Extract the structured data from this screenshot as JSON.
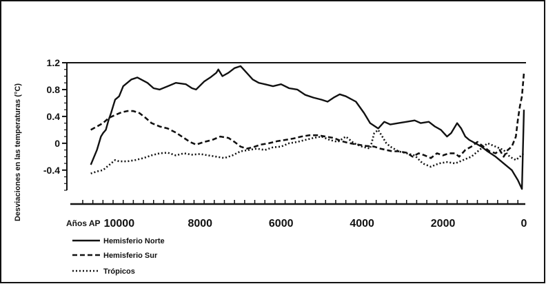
{
  "chart_data": {
    "type": "line",
    "title": "",
    "xlabel": "Años AP",
    "ylabel": "Desviaciones en las temperaturas (°C)",
    "xlim": [
      10900,
      0
    ],
    "ylim": [
      -0.7,
      1.2
    ],
    "y_ticks": [
      -0.4,
      0,
      0.4,
      0.8,
      1.2
    ],
    "y_tick_labels": [
      "-0.4",
      "0",
      "0.4",
      "0.8",
      "1.2"
    ],
    "x_ticks": [
      10000,
      8000,
      6000,
      4000,
      2000,
      0
    ],
    "x_tick_labels": [
      "10000",
      "8000",
      "6000",
      "4000",
      "2000",
      "0"
    ],
    "legend_position": "bottom-left",
    "series": [
      {
        "name": "Hemisferio Norte",
        "style": "solid",
        "color": "#111111",
        "x": [
          10700,
          10550,
          10450,
          10400,
          10330,
          10260,
          10200,
          10150,
          10100,
          10000,
          9900,
          9800,
          9700,
          9550,
          9300,
          9150,
          9000,
          8800,
          8600,
          8350,
          8200,
          8100,
          7900,
          7750,
          7600,
          7550,
          7450,
          7300,
          7150,
          7000,
          6850,
          6700,
          6550,
          6400,
          6200,
          6000,
          5800,
          5600,
          5400,
          5200,
          5000,
          4850,
          4700,
          4550,
          4400,
          4150,
          3950,
          3800,
          3600,
          3450,
          3300,
          3100,
          2900,
          2700,
          2550,
          2350,
          2200,
          2050,
          1900,
          1800,
          1650,
          1550,
          1450,
          1350,
          1200,
          1050,
          900,
          700,
          500,
          300,
          150,
          50,
          0
        ],
        "y": [
          -0.32,
          -0.1,
          0.1,
          0.15,
          0.2,
          0.35,
          0.45,
          0.55,
          0.65,
          0.7,
          0.85,
          0.9,
          0.95,
          0.98,
          0.9,
          0.82,
          0.8,
          0.85,
          0.9,
          0.88,
          0.82,
          0.8,
          0.92,
          0.98,
          1.05,
          1.1,
          1.0,
          1.05,
          1.12,
          1.15,
          1.05,
          0.95,
          0.9,
          0.88,
          0.85,
          0.88,
          0.82,
          0.8,
          0.72,
          0.68,
          0.65,
          0.62,
          0.68,
          0.73,
          0.7,
          0.62,
          0.45,
          0.3,
          0.22,
          0.32,
          0.28,
          0.3,
          0.32,
          0.34,
          0.3,
          0.32,
          0.25,
          0.2,
          0.1,
          0.15,
          0.3,
          0.22,
          0.1,
          0.05,
          0.0,
          -0.05,
          -0.12,
          -0.2,
          -0.3,
          -0.4,
          -0.55,
          -0.68,
          0.5
        ]
      },
      {
        "name": "Hemisferio Sur",
        "style": "dashed",
        "color": "#111111",
        "x": [
          10700,
          10550,
          10400,
          10250,
          10100,
          9950,
          9800,
          9650,
          9500,
          9350,
          9200,
          9000,
          8800,
          8600,
          8400,
          8250,
          8100,
          7900,
          7700,
          7500,
          7300,
          7150,
          7000,
          6850,
          6700,
          6500,
          6300,
          6100,
          5900,
          5700,
          5500,
          5300,
          5100,
          4900,
          4700,
          4500,
          4300,
          4100,
          3900,
          3700,
          3550,
          3400,
          3250,
          3100,
          2900,
          2750,
          2600,
          2450,
          2300,
          2150,
          2000,
          1850,
          1700,
          1600,
          1450,
          1300,
          1150,
          1000,
          850,
          700,
          600,
          500,
          400,
          300,
          200,
          150,
          100,
          50,
          0
        ],
        "y": [
          0.2,
          0.25,
          0.3,
          0.38,
          0.42,
          0.46,
          0.48,
          0.48,
          0.45,
          0.38,
          0.3,
          0.25,
          0.22,
          0.16,
          0.08,
          0.02,
          -0.02,
          0.02,
          0.05,
          0.1,
          0.08,
          0.02,
          -0.05,
          -0.08,
          -0.06,
          -0.02,
          0.0,
          0.03,
          0.05,
          0.07,
          0.1,
          0.12,
          0.12,
          0.1,
          0.08,
          0.03,
          0.0,
          -0.02,
          -0.04,
          -0.05,
          -0.08,
          -0.1,
          -0.12,
          -0.12,
          -0.14,
          -0.2,
          -0.15,
          -0.18,
          -0.22,
          -0.15,
          -0.18,
          -0.15,
          -0.15,
          -0.2,
          -0.1,
          -0.05,
          0.02,
          -0.05,
          -0.12,
          -0.15,
          -0.1,
          -0.2,
          -0.1,
          -0.05,
          0.1,
          0.35,
          0.55,
          0.7,
          1.05
        ]
      },
      {
        "name": "Trópicos",
        "style": "dotted",
        "color": "#111111",
        "x": [
          10700,
          10550,
          10400,
          10300,
          10200,
          10100,
          10000,
          9800,
          9600,
          9400,
          9200,
          9000,
          8800,
          8600,
          8400,
          8200,
          8000,
          7800,
          7600,
          7400,
          7200,
          7000,
          6800,
          6600,
          6400,
          6200,
          6000,
          5800,
          5600,
          5400,
          5200,
          5000,
          4800,
          4600,
          4400,
          4200,
          4000,
          3800,
          3700,
          3600,
          3500,
          3400,
          3300,
          3100,
          2900,
          2700,
          2500,
          2300,
          2100,
          1900,
          1700,
          1500,
          1300,
          1100,
          900,
          700,
          500,
          350,
          200,
          100,
          0
        ],
        "y": [
          -0.45,
          -0.42,
          -0.4,
          -0.35,
          -0.3,
          -0.25,
          -0.27,
          -0.27,
          -0.25,
          -0.22,
          -0.18,
          -0.15,
          -0.14,
          -0.18,
          -0.15,
          -0.17,
          -0.16,
          -0.18,
          -0.2,
          -0.22,
          -0.18,
          -0.12,
          -0.1,
          -0.08,
          -0.1,
          -0.06,
          -0.05,
          0.0,
          0.02,
          0.05,
          0.08,
          0.1,
          0.05,
          0.02,
          0.1,
          0.0,
          -0.05,
          -0.08,
          0.15,
          0.2,
          0.1,
          0.0,
          -0.05,
          -0.12,
          -0.15,
          -0.18,
          -0.3,
          -0.35,
          -0.3,
          -0.28,
          -0.3,
          -0.25,
          -0.2,
          -0.1,
          0.0,
          -0.05,
          -0.1,
          -0.2,
          -0.25,
          -0.2,
          -0.15
        ]
      }
    ]
  },
  "axis_label_x": "Años AP",
  "axis_label_y": "Desviaciones en las temperaturas (°C)",
  "legend": [
    {
      "label": "Hemisferio Norte",
      "style": "solid"
    },
    {
      "label": "Hemisferio Sur",
      "style": "dashed"
    },
    {
      "label": "Trópicos",
      "style": "dotted"
    }
  ]
}
